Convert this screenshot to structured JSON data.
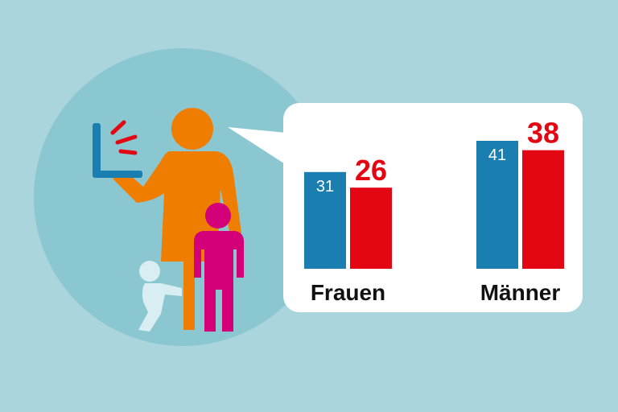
{
  "colors": {
    "background": "#abd5dc",
    "circle": "#8ac7d1",
    "blue": "#1a7fb0",
    "red": "#e30613",
    "orange": "#ef7d00",
    "magenta": "#d4007a",
    "baby": "#d8eef2",
    "laptop": "#1a7fb0",
    "bubble": "#ffffff"
  },
  "illustration": {
    "figures": [
      "woman-with-laptop",
      "child",
      "baby"
    ]
  },
  "chart_data": {
    "type": "bar",
    "categories": [
      "Frauen",
      "Männer"
    ],
    "series": [
      {
        "values": [
          31,
          41
        ],
        "color": "#1a7fb0"
      },
      {
        "values": [
          26,
          38
        ],
        "color": "#e30613"
      }
    ],
    "ylim": [
      0,
      41
    ],
    "grid": false,
    "data_labels": true
  }
}
